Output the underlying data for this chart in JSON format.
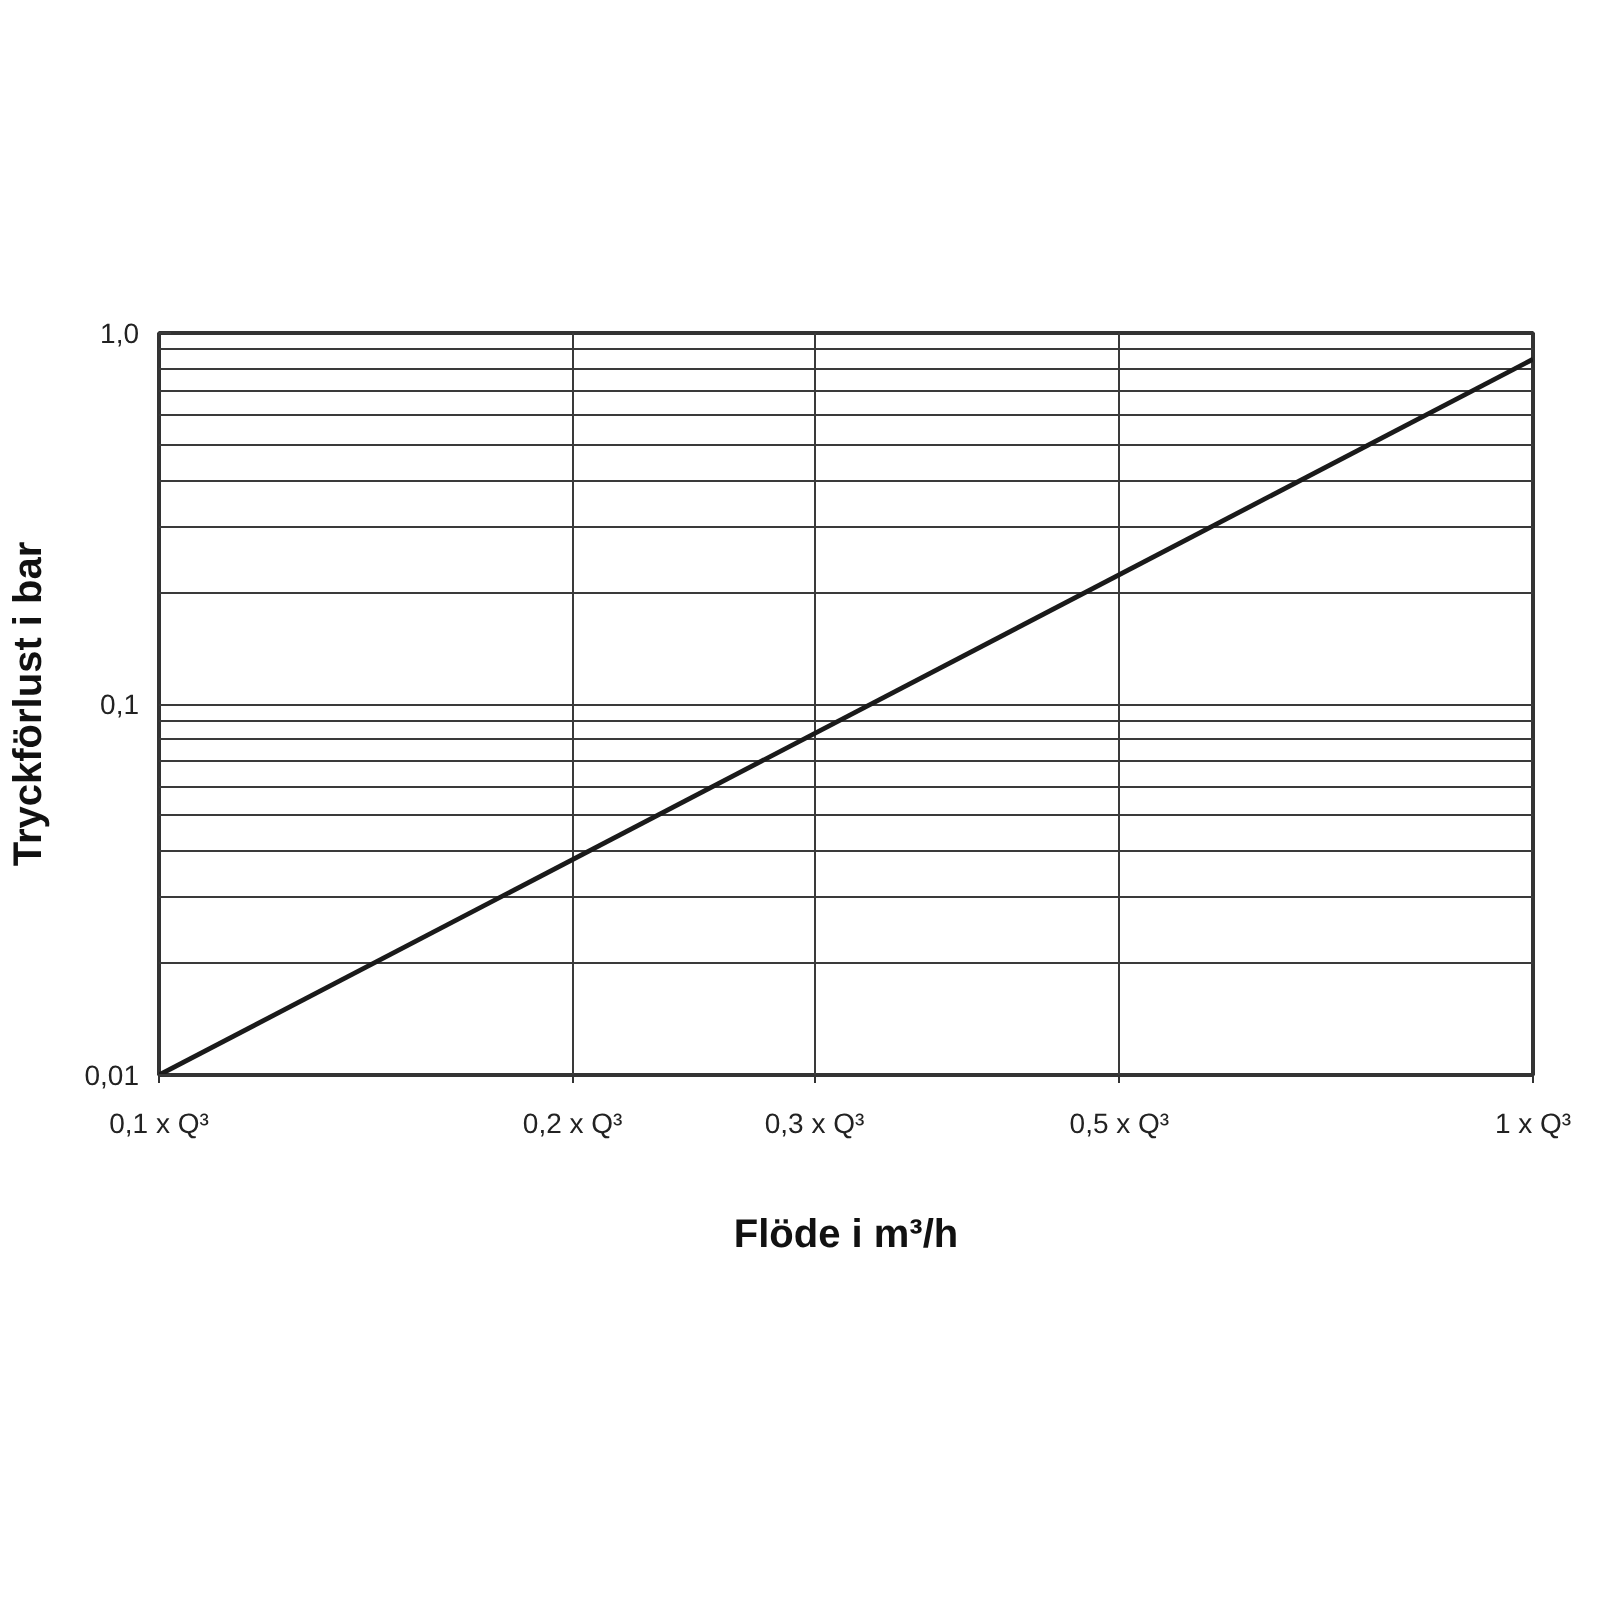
{
  "chart_data": {
    "type": "line",
    "xlabel": "Flöde i m³/h",
    "ylabel": "Tryckförlust i bar",
    "x": [
      0.1,
      1
    ],
    "series": [
      {
        "color": "#1a1a1a",
        "values": [
          0.01,
          0.85
        ]
      }
    ],
    "log": "xy",
    "xlim": [
      0.1,
      1
    ],
    "ylim": [
      0.01,
      1
    ],
    "xticks": [
      {
        "value": 0.1,
        "label": "0,1 x Q³"
      },
      {
        "value": 0.2,
        "label": "0,2 x Q³"
      },
      {
        "value": 0.3,
        "label": "0,3 x Q³"
      },
      {
        "value": 0.5,
        "label": "0,5 x Q³"
      },
      {
        "value": 1,
        "label": "1 x Q³"
      }
    ],
    "yticks": [
      {
        "value": 0.01,
        "label": "0,01"
      },
      {
        "value": 0.02,
        "label": null
      },
      {
        "value": 0.03,
        "label": null
      },
      {
        "value": 0.04,
        "label": null
      },
      {
        "value": 0.05,
        "label": null
      },
      {
        "value": 0.06,
        "label": null
      },
      {
        "value": 0.07,
        "label": null
      },
      {
        "value": 0.08,
        "label": null
      },
      {
        "value": 0.09,
        "label": null
      },
      {
        "value": 0.1,
        "label": "0,1"
      },
      {
        "value": 0.2,
        "label": null
      },
      {
        "value": 0.3,
        "label": null
      },
      {
        "value": 0.4,
        "label": null
      },
      {
        "value": 0.5,
        "label": null
      },
      {
        "value": 0.6,
        "label": null
      },
      {
        "value": 0.7,
        "label": null
      },
      {
        "value": 0.8,
        "label": null
      },
      {
        "value": 0.9,
        "label": null
      },
      {
        "value": 1,
        "label": "1,0"
      }
    ],
    "grid": true
  }
}
